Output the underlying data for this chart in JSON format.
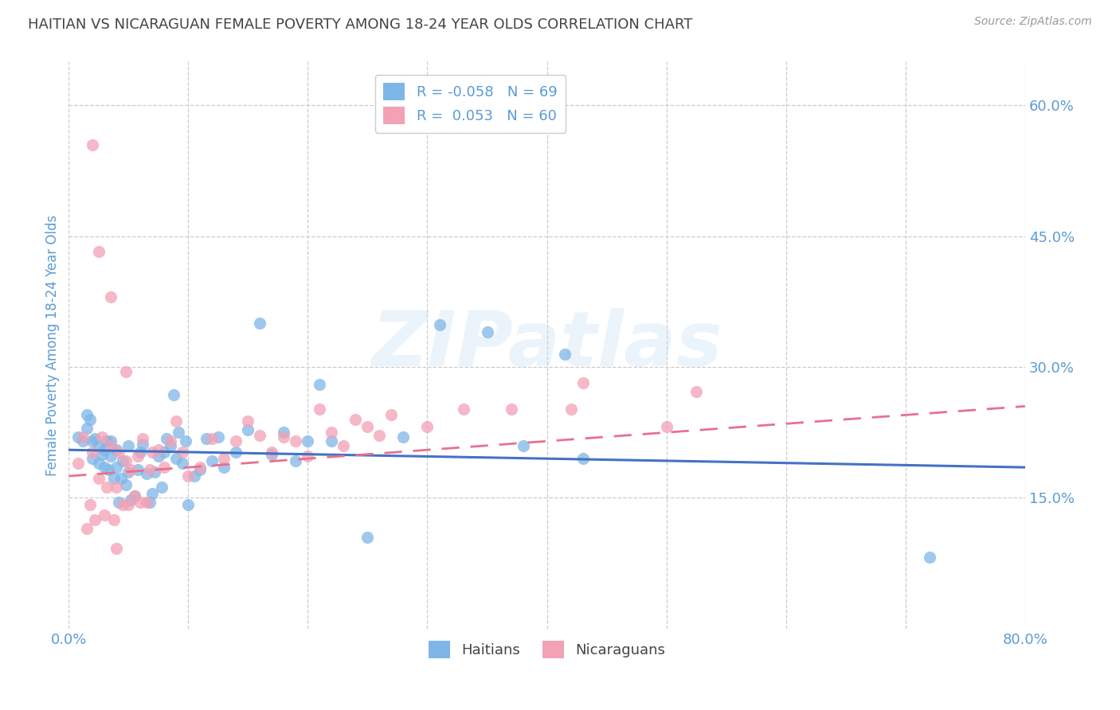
{
  "title": "HAITIAN VS NICARAGUAN FEMALE POVERTY AMONG 18-24 YEAR OLDS CORRELATION CHART",
  "source": "Source: ZipAtlas.com",
  "ylabel": "Female Poverty Among 18-24 Year Olds",
  "xlim": [
    0.0,
    0.8
  ],
  "ylim": [
    0.0,
    0.65
  ],
  "xtick_positions": [
    0.0,
    0.1,
    0.2,
    0.3,
    0.4,
    0.5,
    0.6,
    0.7,
    0.8
  ],
  "xticklabels": [
    "0.0%",
    "",
    "",
    "",
    "",
    "",
    "",
    "",
    "80.0%"
  ],
  "ytick_right_positions": [
    0.15,
    0.3,
    0.45,
    0.6
  ],
  "ytick_right_labels": [
    "15.0%",
    "30.0%",
    "45.0%",
    "60.0%"
  ],
  "haitian_color": "#7eb6e8",
  "nicaraguan_color": "#f4a0b5",
  "haitian_line_color": "#4472c4",
  "nicaraguan_line_color": "#e87090",
  "legend_haitian_label": "R = -0.058   N = 69",
  "legend_nicaraguan_label": "R =  0.053   N = 60",
  "watermark": "ZIPatlas",
  "background_color": "#ffffff",
  "grid_color": "#cccccc",
  "title_color": "#444444",
  "tick_label_color": "#5b9bd5",
  "haitian_line_start_y": 0.205,
  "haitian_line_end_y": 0.185,
  "nicaraguan_line_start_y": 0.175,
  "nicaraguan_line_end_y": 0.255,
  "haitian_x": [
    0.008,
    0.012,
    0.015,
    0.018,
    0.02,
    0.02,
    0.022,
    0.025,
    0.025,
    0.028,
    0.03,
    0.03,
    0.032,
    0.033,
    0.035,
    0.035,
    0.038,
    0.04,
    0.04,
    0.042,
    0.044,
    0.045,
    0.048,
    0.05,
    0.05,
    0.052,
    0.055,
    0.058,
    0.06,
    0.062,
    0.065,
    0.068,
    0.07,
    0.072,
    0.075,
    0.078,
    0.08,
    0.082,
    0.085,
    0.088,
    0.09,
    0.092,
    0.095,
    0.098,
    0.1,
    0.105,
    0.11,
    0.115,
    0.12,
    0.125,
    0.13,
    0.14,
    0.15,
    0.16,
    0.17,
    0.18,
    0.19,
    0.2,
    0.21,
    0.22,
    0.25,
    0.28,
    0.31,
    0.35,
    0.38,
    0.415,
    0.43,
    0.72,
    0.015
  ],
  "haitian_y": [
    0.22,
    0.215,
    0.23,
    0.24,
    0.195,
    0.215,
    0.218,
    0.19,
    0.21,
    0.2,
    0.185,
    0.205,
    0.215,
    0.182,
    0.198,
    0.215,
    0.172,
    0.185,
    0.205,
    0.145,
    0.172,
    0.192,
    0.165,
    0.18,
    0.21,
    0.148,
    0.152,
    0.182,
    0.202,
    0.212,
    0.178,
    0.145,
    0.155,
    0.18,
    0.198,
    0.162,
    0.202,
    0.218,
    0.21,
    0.268,
    0.195,
    0.225,
    0.19,
    0.215,
    0.142,
    0.175,
    0.182,
    0.218,
    0.192,
    0.22,
    0.185,
    0.202,
    0.228,
    0.35,
    0.2,
    0.225,
    0.192,
    0.215,
    0.28,
    0.215,
    0.105,
    0.22,
    0.348,
    0.34,
    0.21,
    0.315,
    0.195,
    0.082,
    0.245
  ],
  "nicaraguan_x": [
    0.008,
    0.012,
    0.015,
    0.018,
    0.02,
    0.022,
    0.025,
    0.028,
    0.03,
    0.032,
    0.035,
    0.038,
    0.04,
    0.042,
    0.045,
    0.048,
    0.05,
    0.052,
    0.055,
    0.058,
    0.06,
    0.062,
    0.065,
    0.068,
    0.07,
    0.075,
    0.08,
    0.085,
    0.09,
    0.095,
    0.1,
    0.11,
    0.12,
    0.13,
    0.14,
    0.15,
    0.16,
    0.17,
    0.18,
    0.19,
    0.2,
    0.21,
    0.22,
    0.23,
    0.24,
    0.25,
    0.26,
    0.27,
    0.3,
    0.33,
    0.37,
    0.42,
    0.43,
    0.5,
    0.525,
    0.02,
    0.025,
    0.035,
    0.04,
    0.048
  ],
  "nicaraguan_y": [
    0.19,
    0.22,
    0.115,
    0.142,
    0.202,
    0.125,
    0.172,
    0.22,
    0.13,
    0.162,
    0.21,
    0.125,
    0.162,
    0.202,
    0.142,
    0.192,
    0.142,
    0.182,
    0.152,
    0.198,
    0.145,
    0.218,
    0.145,
    0.182,
    0.202,
    0.205,
    0.185,
    0.215,
    0.238,
    0.202,
    0.175,
    0.185,
    0.218,
    0.195,
    0.215,
    0.238,
    0.222,
    0.202,
    0.22,
    0.215,
    0.198,
    0.252,
    0.225,
    0.21,
    0.24,
    0.232,
    0.222,
    0.245,
    0.232,
    0.252,
    0.252,
    0.252,
    0.282,
    0.232,
    0.272,
    0.555,
    0.432,
    0.38,
    0.092,
    0.295
  ]
}
